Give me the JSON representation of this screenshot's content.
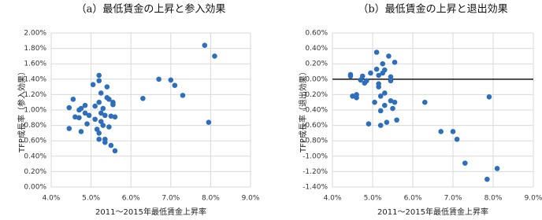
{
  "chart_data": [
    {
      "type": "scatter",
      "title": "（a）最低賃金の上昇と参入効果",
      "x_label": "2011～2015年最低賃金上昇率",
      "y_label": "TFP成長率（参入効果）",
      "color": "#2e6fbd",
      "grid": true,
      "zero_line": false,
      "x": [
        4.45,
        4.45,
        4.55,
        4.6,
        4.7,
        4.7,
        4.75,
        4.75,
        4.85,
        4.85,
        4.9,
        4.95,
        5.05,
        5.1,
        5.1,
        5.15,
        5.2,
        5.2,
        5.25,
        5.2,
        5.25,
        5.2,
        5.2,
        5.25,
        5.3,
        5.3,
        5.35,
        5.35,
        5.35,
        5.4,
        5.4,
        5.45,
        5.45,
        5.5,
        5.5,
        5.55,
        5.55,
        5.6,
        5.6,
        6.3,
        6.7,
        7.0,
        7.1,
        7.3,
        7.85,
        7.95,
        8.1
      ],
      "values": [
        1.03,
        0.76,
        1.14,
        0.91,
        1.0,
        0.9,
        1.02,
        0.72,
        1.06,
        0.96,
        0.82,
        0.93,
        1.33,
        1.05,
        0.88,
        0.75,
        1.38,
        1.45,
        1.22,
        1.1,
        0.96,
        0.7,
        0.62,
        0.85,
        1.02,
        0.8,
        0.93,
        0.58,
        0.62,
        1.3,
        1.16,
        1.14,
        0.78,
        0.92,
        0.54,
        1.1,
        1.07,
        0.91,
        0.47,
        1.15,
        1.4,
        1.39,
        1.32,
        1.19,
        1.84,
        0.84,
        1.7
      ],
      "xlim": [
        4.0,
        9.0
      ],
      "xticks": [
        {
          "value": 4.0,
          "label": "4.0%"
        },
        {
          "value": 5.0,
          "label": "5.0%"
        },
        {
          "value": 6.0,
          "label": "6.0%"
        },
        {
          "value": 7.0,
          "label": "7.0%"
        },
        {
          "value": 8.0,
          "label": "8.0%"
        },
        {
          "value": 9.0,
          "label": "9.0%"
        }
      ],
      "ylim": [
        0.0,
        2.0
      ],
      "yticks": [
        {
          "value": 0.0,
          "label": "0.00%"
        },
        {
          "value": 0.2,
          "label": "0.20%"
        },
        {
          "value": 0.4,
          "label": "0.40%"
        },
        {
          "value": 0.6,
          "label": "0.60%"
        },
        {
          "value": 0.8,
          "label": "0.80%"
        },
        {
          "value": 1.0,
          "label": "1.00%"
        },
        {
          "value": 1.2,
          "label": "1.20%"
        },
        {
          "value": 1.4,
          "label": "1.40%"
        },
        {
          "value": 1.6,
          "label": "1.60%"
        },
        {
          "value": 1.8,
          "label": "1.80%"
        },
        {
          "value": 2.0,
          "label": "2.00%"
        }
      ]
    },
    {
      "type": "scatter",
      "title": "（b）最低賃金の上昇と退出効果",
      "x_label": "2011～2015年最低賃金上昇率",
      "y_label": "TFP成長率（退出効果）",
      "color": "#2e6fbd",
      "grid": true,
      "zero_line": true,
      "x": [
        4.45,
        4.45,
        4.5,
        4.6,
        4.6,
        4.7,
        4.75,
        4.8,
        4.85,
        4.9,
        4.95,
        5.05,
        5.1,
        5.1,
        5.15,
        5.15,
        5.15,
        5.2,
        5.2,
        5.2,
        5.25,
        5.25,
        5.3,
        5.3,
        5.3,
        5.35,
        5.4,
        5.45,
        5.45,
        5.45,
        5.5,
        5.55,
        5.55,
        5.6,
        6.3,
        6.7,
        7.0,
        7.1,
        7.3,
        7.85,
        7.9,
        8.1
      ],
      "values": [
        0.06,
        0.04,
        -0.22,
        -0.2,
        -0.24,
        -0.01,
        0.04,
        -0.05,
        -0.02,
        -0.58,
        0.08,
        -0.3,
        0.35,
        0.13,
        0.05,
        -0.06,
        -0.1,
        -0.22,
        -0.41,
        -0.6,
        0.2,
        0.08,
        0.12,
        -0.18,
        -0.34,
        -0.56,
        0.3,
        0.03,
        -0.02,
        -0.28,
        -0.38,
        0.22,
        -0.3,
        -0.53,
        -0.3,
        -0.68,
        -0.68,
        -0.78,
        -1.09,
        -1.3,
        -0.23,
        -1.16
      ],
      "xlim": [
        4.0,
        9.0
      ],
      "xticks": [
        {
          "value": 4.0,
          "label": "4.0%"
        },
        {
          "value": 5.0,
          "label": "5.0%"
        },
        {
          "value": 6.0,
          "label": "6.0%"
        },
        {
          "value": 7.0,
          "label": "7.0%"
        },
        {
          "value": 8.0,
          "label": "8.0%"
        },
        {
          "value": 9.0,
          "label": "9.0%"
        }
      ],
      "ylim": [
        -1.4,
        0.6
      ],
      "yticks": [
        {
          "value": -1.4,
          "label": "-1.40%"
        },
        {
          "value": -1.2,
          "label": "-1.20%"
        },
        {
          "value": -1.0,
          "label": "-1.00%"
        },
        {
          "value": -0.8,
          "label": "-0.80%"
        },
        {
          "value": -0.6,
          "label": "-0.60%"
        },
        {
          "value": -0.4,
          "label": "-0.40%"
        },
        {
          "value": -0.2,
          "label": "-0.20%"
        },
        {
          "value": 0.0,
          "label": "0.00%"
        },
        {
          "value": 0.2,
          "label": "0.20%"
        },
        {
          "value": 0.4,
          "label": "0.40%"
        },
        {
          "value": 0.6,
          "label": "0.60%"
        }
      ]
    }
  ]
}
